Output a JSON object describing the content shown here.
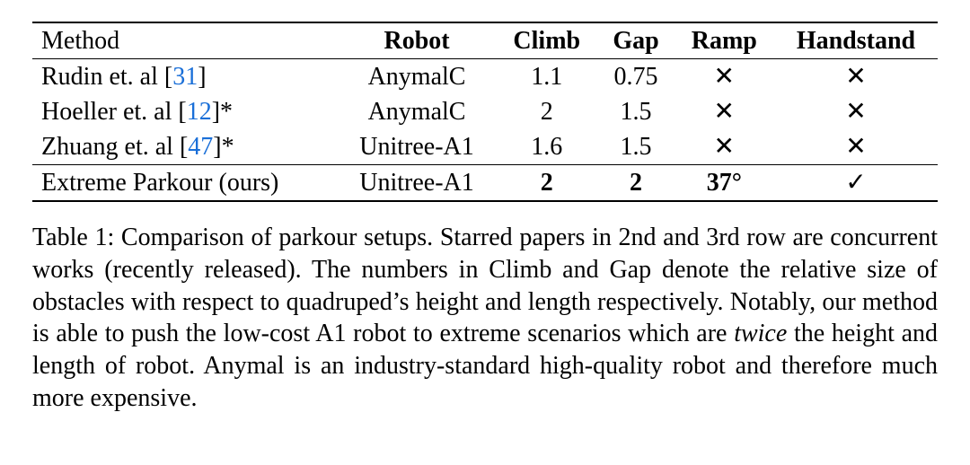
{
  "table": {
    "type": "table",
    "text_color": "#000000",
    "cite_color": "#1a6fd8",
    "background_color": "#ffffff",
    "rule_color": "#000000",
    "font_family": "Times New Roman",
    "body_fontsize_pt": 21,
    "columns": [
      {
        "key": "method",
        "label": "Method",
        "align": "left",
        "bold": false
      },
      {
        "key": "robot",
        "label": "Robot",
        "align": "center",
        "bold": true
      },
      {
        "key": "climb",
        "label": "Climb",
        "align": "center",
        "bold": true
      },
      {
        "key": "gap",
        "label": "Gap",
        "align": "center",
        "bold": true
      },
      {
        "key": "ramp",
        "label": "Ramp",
        "align": "center",
        "bold": true
      },
      {
        "key": "handstand",
        "label": "Handstand",
        "align": "center",
        "bold": true
      }
    ],
    "header": {
      "method": "Method",
      "robot": "Robot",
      "climb": "Climb",
      "gap": "Gap",
      "ramp": "Ramp",
      "handstand": "Handstand"
    },
    "rows": [
      {
        "method_prefix": "Rudin et. al ",
        "cite": "31",
        "method_suffix": "",
        "robot": "AnymalC",
        "climb": "1.1",
        "gap": "0.75",
        "ramp": "✕",
        "handstand": "✕",
        "bold_vals": false
      },
      {
        "method_prefix": "Hoeller et. al ",
        "cite": "12",
        "method_suffix": "*",
        "robot": "AnymalC",
        "climb": "2",
        "gap": "1.5",
        "ramp": "✕",
        "handstand": "✕",
        "bold_vals": false
      },
      {
        "method_prefix": "Zhuang et. al ",
        "cite": "47",
        "method_suffix": "*",
        "robot": "Unitree-A1",
        "climb": "1.6",
        "gap": "1.5",
        "ramp": "✕",
        "handstand": "✕",
        "bold_vals": false
      },
      {
        "method_prefix": "Extreme Parkour (ours)",
        "cite": "",
        "method_suffix": "",
        "robot": "Unitree-A1",
        "climb": "2",
        "gap": "2",
        "ramp": "37°",
        "handstand": "✓",
        "bold_vals": true
      }
    ]
  },
  "caption": {
    "label": "Table 1:",
    "pre": " Comparison of parkour setups. Starred papers in 2nd and 3rd row are concurrent works (recently released). The numbers in Climb and Gap denote the relative size of obstacles with respect to quadruped’s height and length respectively. Notably, our method is able to push the low-cost A1 robot to extreme scenarios which are ",
    "italic": "twice",
    "post": " the height and length of robot. Anymal is an industry-standard high-quality robot and therefore much more expensive.",
    "fontsize_pt": 21
  }
}
